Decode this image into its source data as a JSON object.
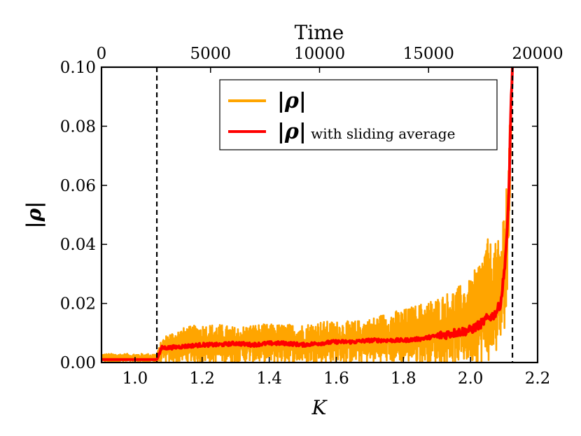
{
  "chart_data": {
    "type": "line",
    "title": "",
    "xlabel": "K",
    "ylabel": "|ρ|",
    "top_xlabel": "Time",
    "xlim": [
      0.9,
      2.2
    ],
    "ylim": [
      0.0,
      0.1
    ],
    "top_xlim": [
      0,
      20000
    ],
    "x_ticks": [
      1.0,
      1.2,
      1.4,
      1.6,
      1.8,
      2.0,
      2.2
    ],
    "x_tick_labels": [
      "1.0",
      "1.2",
      "1.4",
      "1.6",
      "1.8",
      "2.0",
      "2.2"
    ],
    "y_ticks": [
      0.0,
      0.02,
      0.04,
      0.06,
      0.08,
      0.1
    ],
    "y_tick_labels": [
      "0.00",
      "0.02",
      "0.04",
      "0.06",
      "0.08",
      "0.10"
    ],
    "top_x_ticks": [
      0,
      5000,
      10000,
      15000,
      20000
    ],
    "top_x_tick_labels": [
      "0",
      "5000",
      "10000",
      "15000",
      "20000"
    ],
    "vertical_lines": [
      1.065,
      2.125
    ],
    "legend": {
      "position": "top-right",
      "entries": [
        {
          "label": "|ρ|",
          "suffix": "",
          "color": "#FFA500"
        },
        {
          "label": "|ρ|",
          "suffix": " with sliding average",
          "color": "#FF0000"
        }
      ]
    },
    "series": [
      {
        "name": "|ρ|",
        "color": "#FFA500",
        "x": [
          0.9,
          0.95,
          1.0,
          1.05,
          1.065,
          1.08,
          1.1,
          1.15,
          1.2,
          1.25,
          1.3,
          1.35,
          1.4,
          1.45,
          1.5,
          1.55,
          1.6,
          1.65,
          1.7,
          1.75,
          1.8,
          1.85,
          1.9,
          1.95,
          2.0,
          2.03,
          2.05,
          2.07,
          2.09,
          2.1,
          2.11,
          2.115,
          2.12,
          2.125
        ],
        "lower": [
          0.0,
          0.0,
          0.0,
          0.0,
          0.0,
          0.0,
          0.0,
          0.0,
          0.0,
          0.0,
          0.0,
          0.0,
          0.0,
          0.0,
          0.0,
          0.0,
          0.0,
          0.0,
          0.0,
          0.0,
          0.0,
          0.0,
          0.0,
          0.0,
          0.0,
          0.0,
          0.0,
          0.002,
          0.005,
          0.01,
          0.02,
          0.04,
          0.07,
          0.1
        ],
        "upper": [
          0.003,
          0.003,
          0.003,
          0.003,
          0.003,
          0.008,
          0.01,
          0.012,
          0.013,
          0.013,
          0.012,
          0.013,
          0.013,
          0.013,
          0.013,
          0.014,
          0.014,
          0.014,
          0.015,
          0.017,
          0.018,
          0.02,
          0.022,
          0.025,
          0.028,
          0.036,
          0.042,
          0.04,
          0.042,
          0.055,
          0.068,
          0.075,
          0.09,
          0.1
        ]
      },
      {
        "name": "|ρ| with sliding average",
        "color": "#FF0000",
        "x": [
          0.9,
          0.95,
          1.0,
          1.05,
          1.065,
          1.08,
          1.1,
          1.15,
          1.2,
          1.25,
          1.3,
          1.35,
          1.4,
          1.45,
          1.5,
          1.55,
          1.6,
          1.65,
          1.7,
          1.75,
          1.8,
          1.85,
          1.9,
          1.95,
          2.0,
          2.03,
          2.05,
          2.07,
          2.09,
          2.1,
          2.11,
          2.115,
          2.12,
          2.125
        ],
        "values": [
          0.001,
          0.001,
          0.001,
          0.001,
          0.001,
          0.005,
          0.005,
          0.0055,
          0.006,
          0.006,
          0.0065,
          0.006,
          0.0065,
          0.0065,
          0.006,
          0.0065,
          0.007,
          0.007,
          0.0075,
          0.0075,
          0.0075,
          0.008,
          0.009,
          0.01,
          0.011,
          0.013,
          0.015,
          0.016,
          0.02,
          0.03,
          0.045,
          0.06,
          0.085,
          0.1
        ]
      }
    ]
  }
}
